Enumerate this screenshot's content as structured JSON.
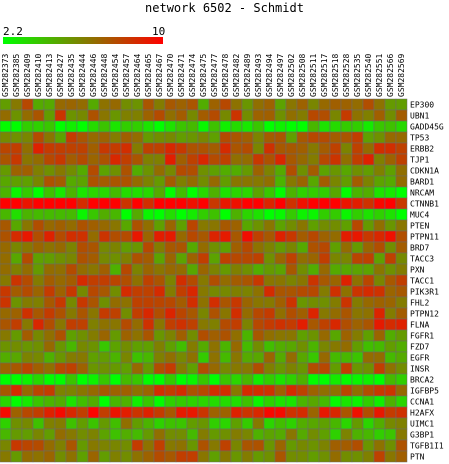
{
  "chart_data": {
    "type": "heatmap",
    "title": "network 6502 - Schmidt",
    "color_scale": {
      "min": 2.2,
      "max": 10,
      "min_label": "2.2",
      "max_label": "10",
      "low_color": "#00ff00",
      "high_color": "#ff0000"
    },
    "columns": [
      "GSM282373",
      "GSM282385",
      "GSM282409",
      "GSM282410",
      "GSM282413",
      "GSM282427",
      "GSM282435",
      "GSM282444",
      "GSM282446",
      "GSM282448",
      "GSM282454",
      "GSM282457",
      "GSM282464",
      "GSM282465",
      "GSM282467",
      "GSM282470",
      "GSM282471",
      "GSM282474",
      "GSM282475",
      "GSM282477",
      "GSM282478",
      "GSM282482",
      "GSM282489",
      "GSM282493",
      "GSM282494",
      "GSM282497",
      "GSM282502",
      "GSM282508",
      "GSM282511",
      "GSM282517",
      "GSM282518",
      "GSM282528",
      "GSM282535",
      "GSM282540",
      "GSM282551",
      "GSM282566",
      "GSM282569"
    ],
    "rows": [
      "EP300",
      "UBN1",
      "GADD45G",
      "TP53",
      "ERBB2",
      "TJP1",
      "CDKN1A",
      "BARD1",
      "NRCAM",
      "CTNNB1",
      "MUC4",
      "PTEN",
      "PTPN11",
      "BRD7",
      "TACC3",
      "PXN",
      "TACC1",
      "PIK3R1",
      "FHL2",
      "PTPN12",
      "FLNA",
      "FGFR1",
      "FZD7",
      "EGFR",
      "INSR",
      "BRCA2",
      "IGFBP5",
      "CCNA1",
      "H2AFX",
      "UIMC1",
      "G3BP1",
      "TGFB1I1",
      "PTN"
    ],
    "row_levels": [
      6.3,
      6.8,
      2.9,
      6.6,
      7.5,
      7.6,
      6.2,
      6.0,
      3.6,
      9.8,
      3.2,
      6.3,
      8.0,
      6.4,
      6.5,
      6.2,
      7.4,
      7.2,
      7.0,
      7.3,
      7.6,
      6.1,
      5.3,
      5.4,
      6.6,
      3.0,
      7.3,
      3.4,
      8.4,
      5.0,
      5.2,
      6.9,
      6.6
    ],
    "values": []
  }
}
